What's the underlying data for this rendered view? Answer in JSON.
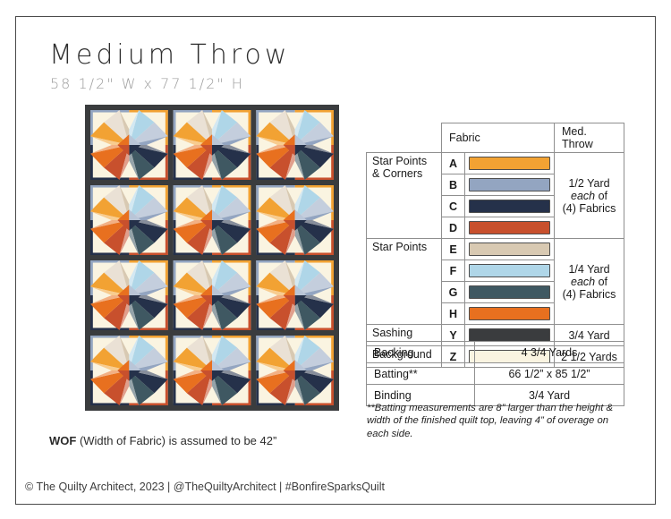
{
  "page": {
    "title": "Medium Throw",
    "subtitle": "58 1/2\" W x 77 1/2\" H",
    "wof_bold": "WOF",
    "wof_rest": " (Width of Fabric) is assumed to be 42”",
    "footer": "© The Quilty Architect, 2023  |  @TheQuiltyArchitect  |  #BonfireSparksQuilt"
  },
  "fabric_table": {
    "headers": {
      "fabric": "Fabric",
      "med_throw": "Med. Throw"
    },
    "groups": [
      {
        "label": "Star Points & Corners",
        "rows": [
          {
            "letter": "A"
          },
          {
            "letter": "B"
          },
          {
            "letter": "C"
          },
          {
            "letter": "D"
          }
        ],
        "yardage": [
          {
            "t": "1/2 Yard"
          },
          {
            "t": "each",
            "i": true,
            "t2": " of"
          },
          {
            "t": "(4) Fabrics"
          }
        ]
      },
      {
        "label": "Star Points",
        "rows": [
          {
            "letter": "E"
          },
          {
            "letter": "F"
          },
          {
            "letter": "G"
          },
          {
            "letter": "H"
          }
        ],
        "yardage": [
          {
            "t": "1/4 Yard"
          },
          {
            "t": "each",
            "i": true,
            "t2": " of"
          },
          {
            "t": "(4) Fabrics"
          }
        ]
      },
      {
        "label": "Sashing",
        "rows": [
          {
            "letter": "Y"
          }
        ],
        "yardage": [
          {
            "t": "3/4 Yard"
          }
        ]
      },
      {
        "label": "Background",
        "rows": [
          {
            "letter": "Z"
          }
        ],
        "yardage": [
          {
            "t": "2 1/2 Yards"
          }
        ]
      }
    ]
  },
  "notions_table": {
    "rows": [
      {
        "label": "Backing",
        "value": "4 3/4 Yards"
      },
      {
        "label": "Batting**",
        "value": "66 1/2” x 85 1/2”"
      },
      {
        "label": "Binding",
        "value": "3/4 Yard"
      }
    ]
  },
  "footnote": "**Batting measurements are 8” larger than the height & width of the finished quilt top, leaving 4” of overage on each side.",
  "quilt": {
    "grid": {
      "rows": 4,
      "cols": 3
    },
    "fabrics": {
      "A": "#F2A233",
      "B": "#93A5C1",
      "C": "#25314A",
      "D": "#C8502D",
      "E": "#D8C9B2",
      "F": "#AFD6E8",
      "G": "#3F5862",
      "H": "#E8701F",
      "Y": "#3A3C3E",
      "Z": "#FAF4E1"
    },
    "sashing_fabric": "Y",
    "background_fabric": "Z",
    "point_fabrics": {
      "n_left": "E",
      "n_right": "F",
      "e_top": "B",
      "e_bottom": "C",
      "s_right": "G",
      "s_left": "D",
      "w_bottom": "H",
      "w_top": "A"
    },
    "corner_fabrics": [
      "B",
      "A",
      "D",
      "C"
    ]
  }
}
